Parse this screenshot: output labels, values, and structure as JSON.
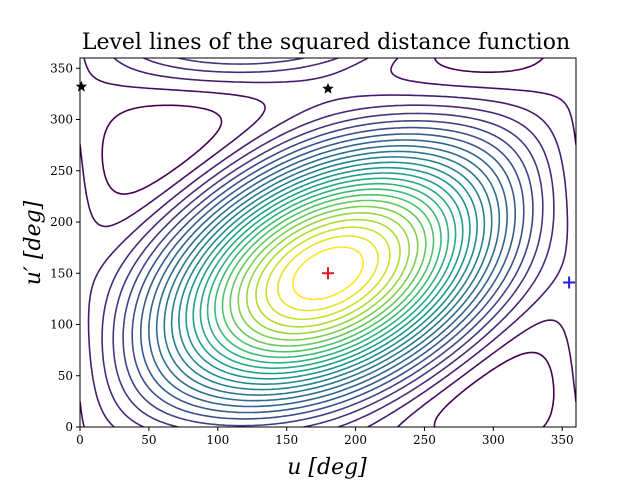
{
  "chart_data": {
    "type": "contour",
    "title": "Level lines of the squared distance function",
    "xlabel": "u [deg]",
    "ylabel": "u′ [deg]",
    "xlim": [
      0,
      360
    ],
    "ylim": [
      0,
      360
    ],
    "xticks": [
      0,
      50,
      100,
      150,
      200,
      250,
      300,
      350
    ],
    "yticks": [
      0,
      50,
      100,
      150,
      200,
      250,
      300,
      350
    ],
    "grid": false,
    "colormap": "viridis",
    "markers": [
      {
        "x": 180,
        "y": 150,
        "shape": "plus",
        "color": "#e8141c"
      },
      {
        "x": 355,
        "y": 141,
        "shape": "plus",
        "color": "#1f1fe0"
      },
      {
        "x": 180,
        "y": 330,
        "shape": "star",
        "color": "#000000"
      },
      {
        "x": 1,
        "y": 332,
        "shape": "star",
        "color": "#000000"
      }
    ]
  }
}
